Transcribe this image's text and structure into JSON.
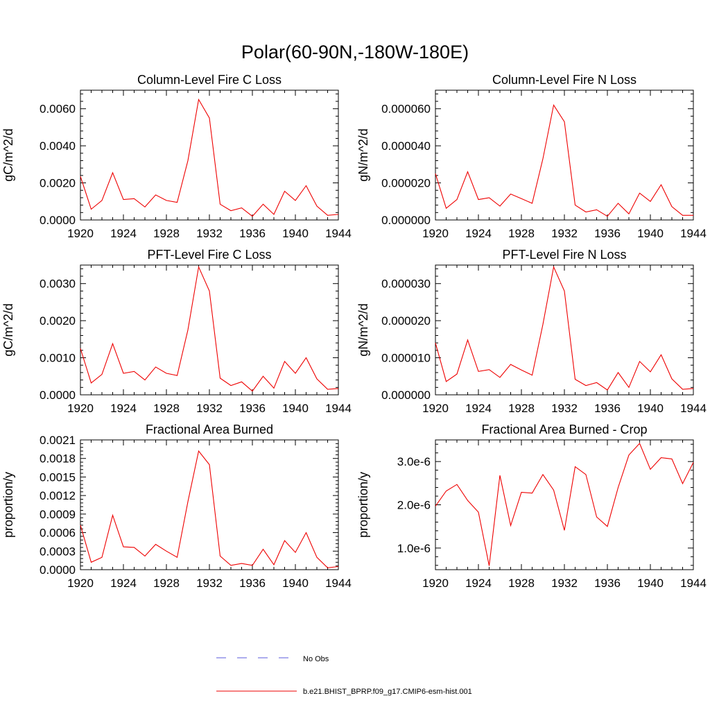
{
  "figure": {
    "title": "Polar(60-90N,-180W-180E)"
  },
  "legend": {
    "entries": [
      {
        "label": "No Obs",
        "style": "dashed",
        "color": "#5a5adc"
      },
      {
        "label": "b.e21.BHIST_BPRP.f09_g17.CMIP6-esm-hist.001",
        "style": "solid",
        "color": "#ee0000"
      }
    ]
  },
  "chart_data": [
    {
      "type": "line",
      "title": "Column-Level Fire C Loss",
      "ylabel": "gC/m^2/d",
      "xlabel": "",
      "xlim": [
        1920,
        1944
      ],
      "ylim": [
        0,
        0.007
      ],
      "xticks": [
        "1920",
        "1924",
        "1928",
        "1932",
        "1936",
        "1940",
        "1944"
      ],
      "yticks": [
        {
          "value": 0,
          "label": "0.0000"
        },
        {
          "value": 0.002,
          "label": "0.0020"
        },
        {
          "value": 0.004,
          "label": "0.0040"
        },
        {
          "value": 0.006,
          "label": "0.0060"
        }
      ],
      "x": [
        1920,
        1921,
        1922,
        1923,
        1924,
        1925,
        1926,
        1927,
        1928,
        1929,
        1930,
        1931,
        1932,
        1933,
        1934,
        1935,
        1936,
        1937,
        1938,
        1939,
        1940,
        1941,
        1942,
        1943,
        1944
      ],
      "series": [
        {
          "name": "b.e21.BHIST_BPRP.f09_g17.CMIP6-esm-hist.001",
          "color": "#ee0000",
          "values": [
            0.00235,
            0.00058,
            0.00105,
            0.00255,
            0.0011,
            0.00115,
            0.0007,
            0.00135,
            0.00105,
            0.00095,
            0.0032,
            0.0065,
            0.0055,
            0.00085,
            0.0005,
            0.00065,
            0.0002,
            0.00085,
            0.0003,
            0.00155,
            0.00105,
            0.00185,
            0.00075,
            0.00025,
            0.0003
          ]
        }
      ]
    },
    {
      "type": "line",
      "title": "Column-Level Fire N Loss",
      "ylabel": "gN/m^2/d",
      "xlabel": "",
      "xlim": [
        1920,
        1944
      ],
      "ylim": [
        0,
        7e-05
      ],
      "xticks": [
        "1920",
        "1924",
        "1928",
        "1932",
        "1936",
        "1940",
        "1944"
      ],
      "yticks": [
        {
          "value": 0,
          "label": "0.000000"
        },
        {
          "value": 2e-05,
          "label": "0.000020"
        },
        {
          "value": 4e-05,
          "label": "0.000040"
        },
        {
          "value": 6e-05,
          "label": "0.000060"
        }
      ],
      "x": [
        1920,
        1921,
        1922,
        1923,
        1924,
        1925,
        1926,
        1927,
        1928,
        1929,
        1930,
        1931,
        1932,
        1933,
        1934,
        1935,
        1936,
        1937,
        1938,
        1939,
        1940,
        1941,
        1942,
        1943,
        1944
      ],
      "series": [
        {
          "name": "b.e21.BHIST_BPRP.f09_g17.CMIP6-esm-hist.001",
          "color": "#ee0000",
          "values": [
            2.5e-05,
            6.3e-06,
            1.1e-05,
            2.6e-05,
            1.1e-05,
            1.2e-05,
            7.5e-06,
            1.4e-05,
            1.15e-05,
            9e-06,
            3.3e-05,
            6.2e-05,
            5.3e-05,
            8e-06,
            4.3e-06,
            5.5e-06,
            2e-06,
            9e-06,
            3.3e-06,
            1.45e-05,
            1e-05,
            1.9e-05,
            7.2e-06,
            2.5e-06,
            2.5e-06
          ]
        }
      ]
    },
    {
      "type": "line",
      "title": "PFT-Level Fire C Loss",
      "ylabel": "gC/m^2/d",
      "xlabel": "",
      "xlim": [
        1920,
        1944
      ],
      "ylim": [
        0,
        0.0035
      ],
      "xticks": [
        "1920",
        "1924",
        "1928",
        "1932",
        "1936",
        "1940",
        "1944"
      ],
      "yticks": [
        {
          "value": 0,
          "label": "0.0000"
        },
        {
          "value": 0.001,
          "label": "0.0010"
        },
        {
          "value": 0.002,
          "label": "0.0020"
        },
        {
          "value": 0.003,
          "label": "0.0030"
        }
      ],
      "x": [
        1920,
        1921,
        1922,
        1923,
        1924,
        1925,
        1926,
        1927,
        1928,
        1929,
        1930,
        1931,
        1932,
        1933,
        1934,
        1935,
        1936,
        1937,
        1938,
        1939,
        1940,
        1941,
        1942,
        1943,
        1944
      ],
      "series": [
        {
          "name": "b.e21.BHIST_BPRP.f09_g17.CMIP6-esm-hist.001",
          "color": "#ee0000",
          "values": [
            0.00125,
            0.00032,
            0.00055,
            0.00138,
            0.00058,
            0.00063,
            0.0004,
            0.00075,
            0.00058,
            0.00052,
            0.00175,
            0.00345,
            0.0028,
            0.00045,
            0.00025,
            0.00035,
            0.0001,
            0.0005,
            0.00018,
            0.0009,
            0.00058,
            0.001,
            0.00043,
            0.00015,
            0.00017
          ]
        }
      ]
    },
    {
      "type": "line",
      "title": "PFT-Level Fire N Loss",
      "ylabel": "gN/m^2/d",
      "xlabel": "",
      "xlim": [
        1920,
        1944
      ],
      "ylim": [
        0,
        3.5e-05
      ],
      "xticks": [
        "1920",
        "1924",
        "1928",
        "1932",
        "1936",
        "1940",
        "1944"
      ],
      "yticks": [
        {
          "value": 0,
          "label": "0.000000"
        },
        {
          "value": 1e-05,
          "label": "0.000010"
        },
        {
          "value": 2e-05,
          "label": "0.000020"
        },
        {
          "value": 3e-05,
          "label": "0.000030"
        }
      ],
      "x": [
        1920,
        1921,
        1922,
        1923,
        1924,
        1925,
        1926,
        1927,
        1928,
        1929,
        1930,
        1931,
        1932,
        1933,
        1934,
        1935,
        1936,
        1937,
        1938,
        1939,
        1940,
        1941,
        1942,
        1943,
        1944
      ],
      "series": [
        {
          "name": "b.e21.BHIST_BPRP.f09_g17.CMIP6-esm-hist.001",
          "color": "#ee0000",
          "values": [
            1.4e-05,
            3.6e-06,
            5.6e-06,
            1.48e-05,
            6.3e-06,
            6.8e-06,
            4.7e-06,
            8.2e-06,
            6.7e-06,
            5.3e-06,
            1.9e-05,
            3.45e-05,
            2.8e-05,
            4.2e-06,
            2.5e-06,
            3.3e-06,
            1.3e-06,
            6e-06,
            2e-06,
            9e-06,
            6.2e-06,
            1.08e-05,
            4.3e-06,
            1.5e-06,
            1.7e-06
          ]
        }
      ]
    },
    {
      "type": "line",
      "title": "Fractional Area Burned",
      "ylabel": "proportion/y",
      "xlabel": "",
      "xlim": [
        1920,
        1944
      ],
      "ylim": [
        0,
        0.0021
      ],
      "xticks": [
        "1920",
        "1924",
        "1928",
        "1932",
        "1936",
        "1940",
        "1944"
      ],
      "yticks": [
        {
          "value": 0,
          "label": "0.0000"
        },
        {
          "value": 0.0003,
          "label": "0.0003"
        },
        {
          "value": 0.0006,
          "label": "0.0006"
        },
        {
          "value": 0.0009,
          "label": "0.0009"
        },
        {
          "value": 0.0012,
          "label": "0.0012"
        },
        {
          "value": 0.0015,
          "label": "0.0015"
        },
        {
          "value": 0.0018,
          "label": "0.0018"
        },
        {
          "value": 0.0021,
          "label": "0.0021"
        }
      ],
      "x": [
        1920,
        1921,
        1922,
        1923,
        1924,
        1925,
        1926,
        1927,
        1928,
        1929,
        1930,
        1931,
        1932,
        1933,
        1934,
        1935,
        1936,
        1937,
        1938,
        1939,
        1940,
        1941,
        1942,
        1943,
        1944
      ],
      "series": [
        {
          "name": "b.e21.BHIST_BPRP.f09_g17.CMIP6-esm-hist.001",
          "color": "#ee0000",
          "values": [
            0.00072,
            0.00012,
            0.0002,
            0.00088,
            0.00037,
            0.00036,
            0.00022,
            0.00041,
            0.0003,
            0.0002,
            0.0011,
            0.00192,
            0.0017,
            0.00022,
            7e-05,
            0.0001,
            7e-05,
            0.00033,
            8e-05,
            0.00047,
            0.00028,
            0.0006,
            0.0002,
            3e-05,
            5e-05
          ]
        }
      ]
    },
    {
      "type": "line",
      "title": "Fractional Area Burned - Crop",
      "ylabel": "proportion/y",
      "xlabel": "",
      "xlim": [
        1920,
        1944
      ],
      "ylim": [
        5e-07,
        3.5e-06
      ],
      "xticks": [
        "1920",
        "1924",
        "1928",
        "1932",
        "1936",
        "1940",
        "1944"
      ],
      "yticks": [
        {
          "value": 1e-06,
          "label": "1.0e-6"
        },
        {
          "value": 2e-06,
          "label": "2.0e-6"
        },
        {
          "value": 3e-06,
          "label": "3.0e-6"
        }
      ],
      "x": [
        1920,
        1921,
        1922,
        1923,
        1924,
        1925,
        1926,
        1927,
        1928,
        1929,
        1930,
        1931,
        1932,
        1933,
        1934,
        1935,
        1936,
        1937,
        1938,
        1939,
        1940,
        1941,
        1942,
        1943,
        1944
      ],
      "series": [
        {
          "name": "b.e21.BHIST_BPRP.f09_g17.CMIP6-esm-hist.001",
          "color": "#ee0000",
          "values": [
            1.97e-06,
            2.32e-06,
            2.47e-06,
            2.1e-06,
            1.83e-06,
            5.9e-07,
            2.68e-06,
            1.52e-06,
            2.29e-06,
            2.27e-06,
            2.7e-06,
            2.34e-06,
            1.41e-06,
            2.88e-06,
            2.7e-06,
            1.72e-06,
            1.5e-06,
            2.4e-06,
            3.15e-06,
            3.42e-06,
            2.82e-06,
            3.09e-06,
            3.06e-06,
            2.49e-06,
            2.98e-06
          ]
        }
      ]
    }
  ]
}
